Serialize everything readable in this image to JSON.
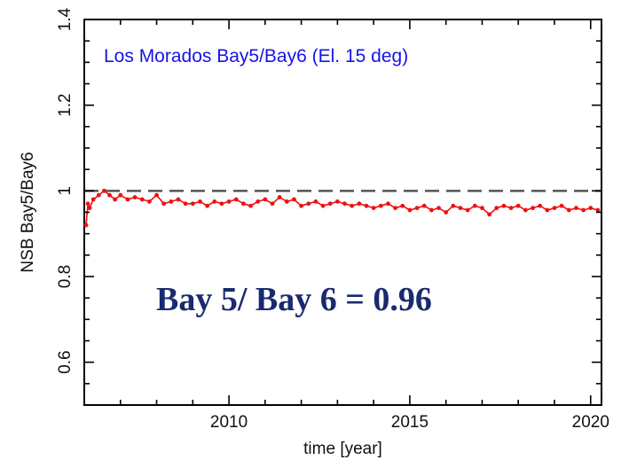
{
  "chart_data": {
    "type": "scatter",
    "title": "",
    "xlabel": "time [year]",
    "ylabel": "NSB Bay5/Bay6",
    "xlim": [
      2006.0,
      2020.3
    ],
    "ylim": [
      0.5,
      1.4
    ],
    "x_ticks": [
      2010,
      2015,
      2020
    ],
    "y_ticks": [
      0.6,
      0.8,
      1,
      1.2,
      1.4
    ],
    "x_tick_labels": [
      "2010",
      "2015",
      "2020"
    ],
    "y_tick_labels": [
      "0.6",
      "0.8",
      "1",
      "1.2",
      "1.4"
    ],
    "grid": false,
    "reference_line": {
      "y": 1.0,
      "style": "dashed",
      "color": "#555555"
    },
    "annotations": [
      {
        "text": "Los Morados Bay5/Bay6 (El. 15 deg)",
        "color": "#1515e6"
      },
      {
        "text": "Bay 5/ Bay 6 = 0.96",
        "color": "#1a2a6e"
      }
    ],
    "series": [
      {
        "color": "#ee1111",
        "marker": "dot",
        "x": [
          2006.05,
          2006.1,
          2006.15,
          2006.25,
          2006.4,
          2006.55,
          2006.7,
          2006.85,
          2007.0,
          2007.2,
          2007.4,
          2007.6,
          2007.8,
          2008.0,
          2008.2,
          2008.4,
          2008.6,
          2008.8,
          2009.0,
          2009.2,
          2009.4,
          2009.6,
          2009.8,
          2010.0,
          2010.2,
          2010.4,
          2010.6,
          2010.8,
          2011.0,
          2011.2,
          2011.4,
          2011.6,
          2011.8,
          2012.0,
          2012.2,
          2012.4,
          2012.6,
          2012.8,
          2013.0,
          2013.2,
          2013.4,
          2013.6,
          2013.8,
          2014.0,
          2014.2,
          2014.4,
          2014.6,
          2014.8,
          2015.0,
          2015.2,
          2015.4,
          2015.6,
          2015.8,
          2016.0,
          2016.2,
          2016.4,
          2016.6,
          2016.8,
          2017.0,
          2017.2,
          2017.4,
          2017.6,
          2017.8,
          2018.0,
          2018.2,
          2018.4,
          2018.6,
          2018.8,
          2019.0,
          2019.2,
          2019.4,
          2019.6,
          2019.8,
          2020.0,
          2020.2
        ],
        "y": [
          0.92,
          0.97,
          0.96,
          0.98,
          0.99,
          1.0,
          0.99,
          0.98,
          0.99,
          0.98,
          0.985,
          0.98,
          0.975,
          0.99,
          0.97,
          0.975,
          0.98,
          0.97,
          0.97,
          0.975,
          0.965,
          0.975,
          0.97,
          0.975,
          0.98,
          0.97,
          0.965,
          0.975,
          0.98,
          0.97,
          0.985,
          0.975,
          0.98,
          0.965,
          0.97,
          0.975,
          0.965,
          0.97,
          0.975,
          0.97,
          0.965,
          0.97,
          0.965,
          0.96,
          0.965,
          0.97,
          0.96,
          0.965,
          0.955,
          0.96,
          0.965,
          0.955,
          0.96,
          0.95,
          0.965,
          0.96,
          0.955,
          0.965,
          0.96,
          0.945,
          0.96,
          0.965,
          0.96,
          0.965,
          0.955,
          0.96,
          0.965,
          0.955,
          0.96,
          0.965,
          0.955,
          0.96,
          0.955,
          0.96,
          0.955
        ]
      }
    ]
  }
}
